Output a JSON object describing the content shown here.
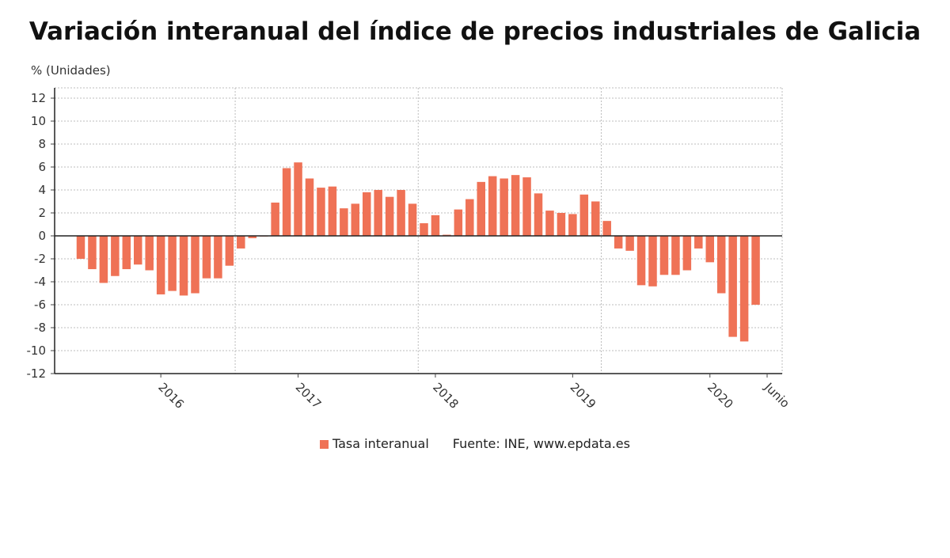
{
  "chart_data": {
    "type": "bar",
    "title": "Variación interanual del índice de precios industriales de Galicia",
    "ylabel": "% (Unidades)",
    "xlabel": "",
    "ylim": [
      -12,
      13
    ],
    "yticks": [
      12,
      10,
      8,
      6,
      4,
      2,
      0,
      -2,
      -4,
      -6,
      -8,
      -10,
      -12
    ],
    "xtick_labels": [
      {
        "label": "2016",
        "at": 7
      },
      {
        "label": "2017",
        "at": 19
      },
      {
        "label": "2018",
        "at": 31
      },
      {
        "label": "2019",
        "at": 43
      },
      {
        "label": "2020",
        "at": 55
      },
      {
        "label": "Junio",
        "at": 60
      }
    ],
    "year_dividers": [
      13.5,
      29.5,
      45.5
    ],
    "grid": true,
    "legend_position": "bottom",
    "series": [
      {
        "name": "Tasa interanual",
        "color": "#ef7256",
        "values": [
          -2.0,
          -2.9,
          -4.1,
          -3.5,
          -2.9,
          -2.5,
          -3.0,
          -5.1,
          -4.8,
          -5.2,
          -5.0,
          -3.7,
          -3.7,
          -2.6,
          -1.1,
          -0.2,
          0.0,
          2.9,
          5.9,
          6.4,
          5.0,
          4.2,
          4.3,
          2.4,
          2.8,
          3.8,
          4.0,
          3.4,
          4.0,
          2.8,
          1.1,
          1.8,
          0.1,
          2.3,
          3.2,
          4.7,
          5.2,
          5.0,
          5.3,
          5.1,
          3.7,
          2.2,
          2.0,
          1.9,
          3.6,
          3.0,
          1.3,
          -1.1,
          -1.3,
          -4.3,
          -4.4,
          -3.4,
          -3.4,
          -3.0,
          -1.1,
          -2.3,
          -5.0,
          -8.8,
          -9.2,
          -6.0
        ]
      }
    ]
  },
  "legend": {
    "source": "Fuente: INE, www.epdata.es"
  }
}
